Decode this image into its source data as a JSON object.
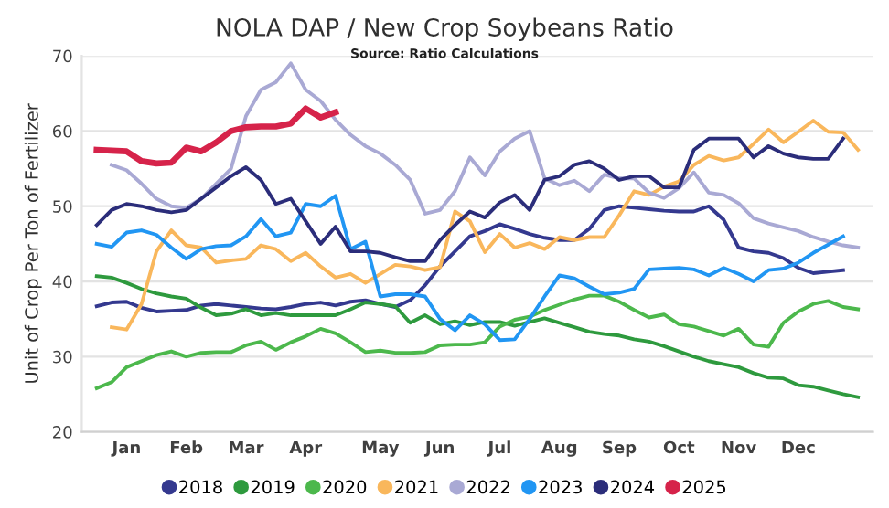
{
  "chart_data": {
    "type": "line",
    "title": "NOLA DAP / New Crop Soybeans Ratio",
    "subtitle": "Source: Ratio Calculations",
    "ylabel": "Unit of Crop Per Ton of Fertilizer",
    "categories": [
      null,
      null,
      "Jan",
      null,
      null,
      null,
      "Feb",
      null,
      null,
      null,
      "Mar",
      null,
      null,
      null,
      "Apr",
      null,
      null,
      null,
      null,
      "May",
      null,
      null,
      null,
      "Jun",
      null,
      null,
      null,
      "Jul",
      null,
      null,
      null,
      "Aug",
      null,
      null,
      null,
      "Sep",
      null,
      null,
      null,
      "Oct",
      null,
      null,
      null,
      "Nov",
      null,
      null,
      null,
      "Dec",
      null,
      null,
      null,
      null
    ],
    "ylim": [
      20,
      70
    ],
    "yticks": [
      20,
      30,
      40,
      50,
      60,
      70
    ],
    "grid": "y",
    "legend": "bottom",
    "marker": "none",
    "line_style": "solid",
    "series": [
      {
        "name": "2018",
        "color": "#34398f",
        "values": [
          36.7,
          37.2,
          37.3,
          36.5,
          36,
          36.1,
          36.2,
          36.8,
          37,
          36.8,
          36.6,
          36.4,
          36.3,
          36.6,
          37,
          37.2,
          36.8,
          37.3,
          37.5,
          37,
          36.6,
          37.5,
          39.5,
          42,
          44,
          46,
          46.7,
          47.6,
          47,
          46.3,
          45.8,
          45.5,
          45.5,
          47,
          49.5,
          50,
          49.8,
          49.6,
          49.4,
          49.3,
          49.3,
          50,
          48.2,
          44.5,
          44,
          43.8,
          43.1,
          41.8,
          41.1,
          41.3,
          41.5,
          null
        ]
      },
      {
        "name": "2019",
        "color": "#2e9a3e",
        "values": [
          40.7,
          40.5,
          39.8,
          39,
          38.4,
          38,
          37.7,
          36.5,
          35.5,
          35.7,
          36.3,
          35.5,
          35.8,
          35.5,
          35.5,
          35.5,
          35.5,
          36.3,
          37.2,
          37,
          36.7,
          34.5,
          35.5,
          34.3,
          34.7,
          34.2,
          34.6,
          34.6,
          34.1,
          34.6,
          35.1,
          34.5,
          33.9,
          33.3,
          33,
          32.8,
          32.3,
          32,
          31.4,
          30.7,
          30,
          29.4,
          29,
          28.6,
          27.8,
          27.2,
          27.1,
          26.2,
          26,
          25.5,
          25,
          24.6
        ]
      },
      {
        "name": "2020",
        "color": "#4cb84c",
        "values": [
          25.8,
          26.6,
          28.6,
          29.4,
          30.2,
          30.7,
          30,
          30.5,
          30.6,
          30.6,
          31.5,
          32,
          30.9,
          31.9,
          32.7,
          33.7,
          33.1,
          31.9,
          30.6,
          30.8,
          30.5,
          30.5,
          30.6,
          31.5,
          31.6,
          31.6,
          31.9,
          34,
          34.9,
          35.3,
          36.2,
          36.9,
          37.6,
          38.1,
          38.1,
          37.3,
          36.2,
          35.2,
          35.6,
          34.3,
          34,
          33.4,
          32.8,
          33.7,
          31.6,
          31.3,
          34.5,
          36,
          37,
          37.4,
          36.6,
          36.3
        ]
      },
      {
        "name": "2021",
        "color": "#f9b75c",
        "values": [
          null,
          33.9,
          33.6,
          37,
          44,
          46.8,
          44.8,
          44.5,
          42.5,
          42.8,
          43,
          44.8,
          44.3,
          42.7,
          43.8,
          42,
          40.5,
          41,
          39.8,
          41,
          42.2,
          42,
          41.5,
          41.9,
          49.3,
          48,
          43.9,
          46.3,
          44.5,
          45.1,
          44.3,
          45.9,
          45.5,
          45.9,
          45.9,
          48.8,
          52,
          51.5,
          52.6,
          53.3,
          55.5,
          56.7,
          56.1,
          56.5,
          58.3,
          60.2,
          58.5,
          59.9,
          61.4,
          59.9,
          59.8,
          57.5
        ]
      },
      {
        "name": "2022",
        "color": "#a9a9d4",
        "values": [
          null,
          55.5,
          54.8,
          53,
          51,
          50,
          49.8,
          51,
          53,
          55,
          62,
          65.5,
          66.5,
          69,
          65.5,
          64,
          61.5,
          59.5,
          58,
          57,
          55.5,
          53.5,
          49,
          49.5,
          52,
          56.5,
          54.1,
          57.3,
          59,
          60,
          53.7,
          52.8,
          53.4,
          52,
          54.2,
          53.7,
          53.7,
          51.8,
          51.1,
          52.4,
          54.5,
          51.8,
          51.5,
          50.4,
          48.4,
          47.7,
          47.2,
          46.7,
          45.9,
          45.3,
          44.8,
          44.5
        ]
      },
      {
        "name": "2023",
        "color": "#2196f3",
        "values": [
          45,
          44.6,
          46.5,
          46.8,
          46.2,
          44.5,
          43,
          44.3,
          44.7,
          44.8,
          46,
          48.3,
          46,
          46.5,
          50.3,
          50,
          51.4,
          44.3,
          45.3,
          38,
          38.3,
          38.3,
          38,
          35,
          33.5,
          35.5,
          34.3,
          32.2,
          32.3,
          35,
          38,
          40.8,
          40.4,
          39.3,
          38.3,
          38.5,
          39,
          41.6,
          41.7,
          41.8,
          41.6,
          40.8,
          41.8,
          41,
          40,
          41.5,
          41.7,
          42.5,
          43.8,
          44.9,
          46,
          null
        ]
      },
      {
        "name": "2024",
        "color": "#2b2d7a",
        "values": [
          47.5,
          49.5,
          50.3,
          50,
          49.5,
          49.2,
          49.5,
          51,
          52.5,
          54,
          55.2,
          53.5,
          50.3,
          51,
          48,
          45,
          47.3,
          44,
          44,
          43.8,
          43.2,
          42.7,
          42.7,
          45.5,
          47.5,
          49.3,
          48.5,
          50.5,
          51.5,
          49.5,
          53.5,
          54,
          55.5,
          56,
          55,
          53.5,
          54,
          54,
          52.5,
          52.5,
          57.5,
          59,
          59,
          59,
          56.5,
          58,
          57,
          56.5,
          56.3,
          56.3,
          59,
          null
        ]
      },
      {
        "name": "2025",
        "color": "#d6234a",
        "values": [
          57.5,
          57.4,
          57.3,
          56,
          55.7,
          55.8,
          57.8,
          57.3,
          58.5,
          60,
          60.5,
          60.6,
          60.6,
          61,
          63,
          61.8,
          62.5,
          null,
          null,
          null,
          null,
          null,
          null,
          null,
          null,
          null,
          null,
          null,
          null,
          null,
          null,
          null,
          null,
          null,
          null,
          null,
          null,
          null,
          null,
          null,
          null,
          null,
          null,
          null,
          null,
          null,
          null,
          null,
          null,
          null,
          null,
          null
        ]
      }
    ]
  }
}
